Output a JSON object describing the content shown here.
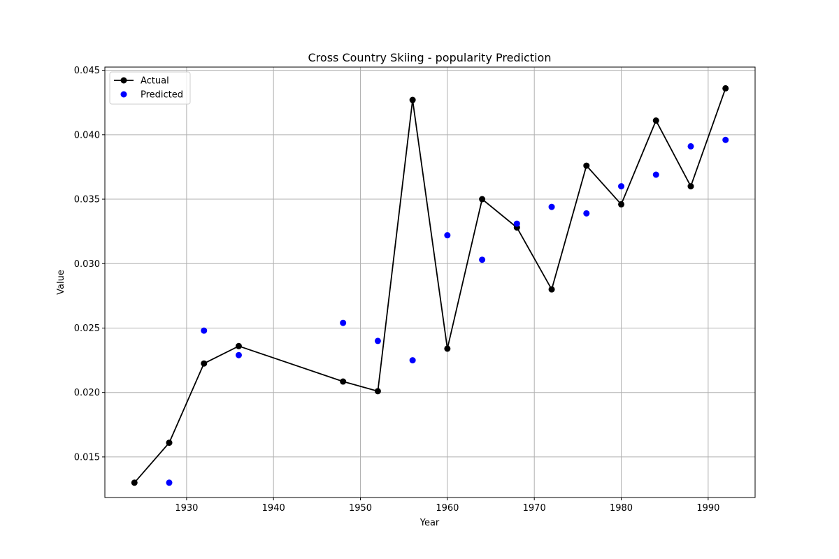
{
  "chart_data": {
    "type": "line",
    "title": "Cross Country Skiing - popularity Prediction",
    "xlabel": "Year",
    "ylabel": "Value",
    "xlim": [
      1920.6,
      1995.4
    ],
    "ylim": [
      0.01185,
      0.04525
    ],
    "xticks": [
      1930,
      1940,
      1950,
      1960,
      1970,
      1980,
      1990
    ],
    "xtick_labels": [
      "1930",
      "1940",
      "1950",
      "1960",
      "1970",
      "1980",
      "1990"
    ],
    "yticks": [
      0.015,
      0.02,
      0.025,
      0.03,
      0.035,
      0.04,
      0.045
    ],
    "ytick_labels": [
      "0.015",
      "0.020",
      "0.025",
      "0.030",
      "0.035",
      "0.040",
      "0.045"
    ],
    "grid": true,
    "legend_position": "top-left",
    "series": [
      {
        "name": "Actual",
        "style": "line-marker",
        "color": "#000000",
        "x": [
          1924,
          1928,
          1932,
          1936,
          1948,
          1952,
          1956,
          1960,
          1964,
          1968,
          1972,
          1976,
          1980,
          1984,
          1988,
          1992
        ],
        "values": [
          0.013,
          0.0161,
          0.02225,
          0.0236,
          0.02085,
          0.0201,
          0.0427,
          0.0234,
          0.035,
          0.0328,
          0.028,
          0.0376,
          0.0346,
          0.0411,
          0.036,
          0.0436
        ]
      },
      {
        "name": "Predicted",
        "style": "scatter",
        "color": "#0000ff",
        "x": [
          1928,
          1932,
          1936,
          1948,
          1952,
          1956,
          1960,
          1964,
          1968,
          1972,
          1976,
          1980,
          1984,
          1988,
          1992
        ],
        "values": [
          0.013,
          0.0248,
          0.0229,
          0.0254,
          0.024,
          0.0225,
          0.0322,
          0.0303,
          0.0331,
          0.0344,
          0.0339,
          0.036,
          0.0369,
          0.0391,
          0.0396
        ]
      }
    ]
  }
}
